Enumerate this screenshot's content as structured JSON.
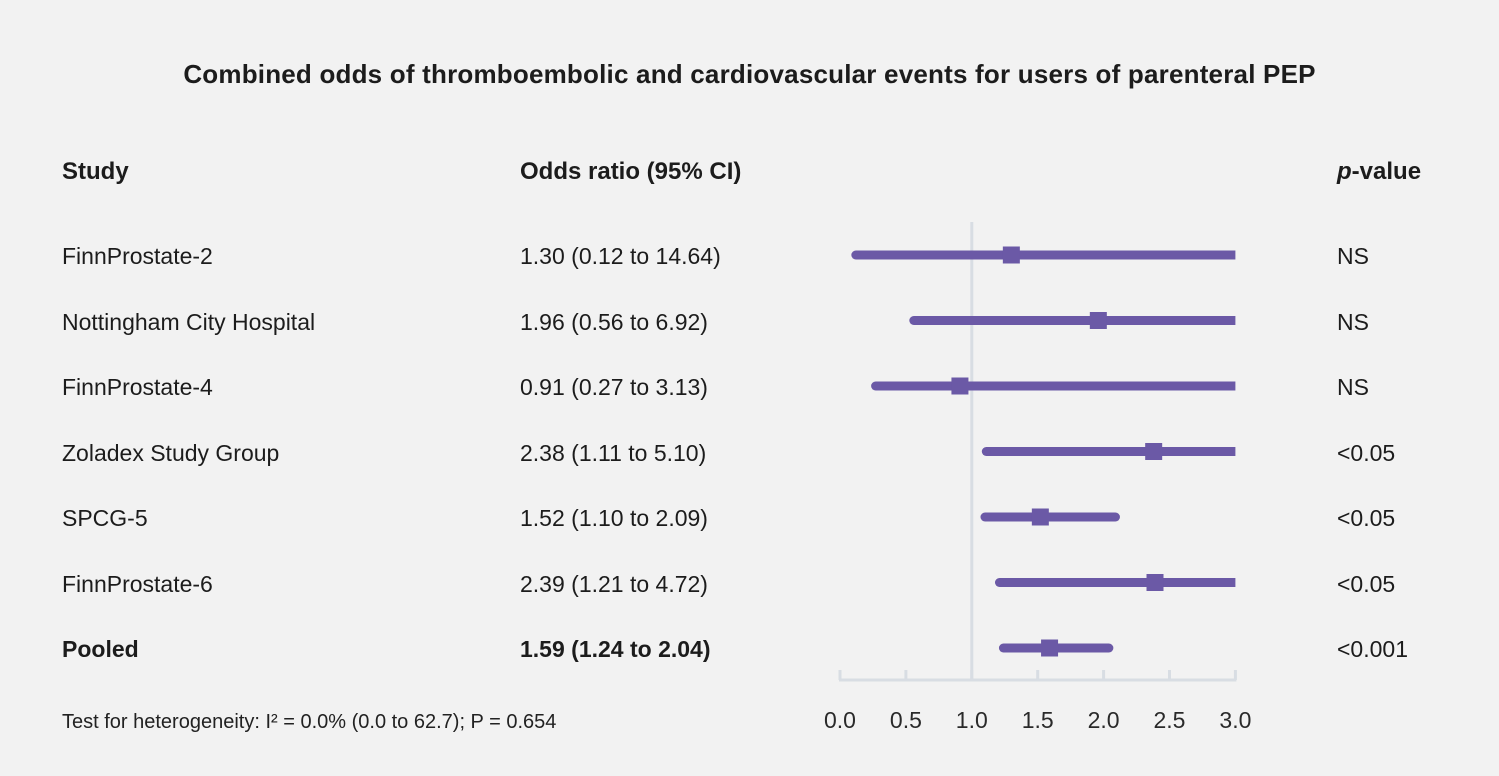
{
  "title": "Combined odds of thromboembolic and cardiovascular events for users of parenteral PEP",
  "columns": {
    "study": "Study",
    "odds_ratio": "Odds ratio (95% CI)",
    "pvalue_italic": "p",
    "pvalue_rest": "-value"
  },
  "footnote": "Test for heterogeneity: I² = 0.0% (0.0 to 62.7); P = 0.654",
  "colors": {
    "background": "#f2f2f2",
    "marker_purple": "#6b59a6",
    "axis_gray": "#d8dde3",
    "text": "#1c1c1c"
  },
  "chart_data": {
    "type": "forest",
    "title": "Combined odds of thromboembolic and cardiovascular events for users of parenteral PEP",
    "xlabel": "",
    "x_ticks": [
      "0.0",
      "0.5",
      "1.0",
      "1.5",
      "2.0",
      "2.5",
      "3.0"
    ],
    "x_range": [
      0.0,
      3.0
    ],
    "reference_line": 1.0,
    "legend": "none",
    "rows": [
      {
        "study": "FinnProstate-2",
        "or": 1.3,
        "ci_low": 0.12,
        "ci_high": 14.64,
        "or_label": "1.30 (0.12 to 14.64)",
        "p_value": "NS",
        "bold": false
      },
      {
        "study": "Nottingham City Hospital",
        "or": 1.96,
        "ci_low": 0.56,
        "ci_high": 6.92,
        "or_label": "1.96 (0.56 to 6.92)",
        "p_value": "NS",
        "bold": false
      },
      {
        "study": "FinnProstate-4",
        "or": 0.91,
        "ci_low": 0.27,
        "ci_high": 3.13,
        "or_label": "0.91 (0.27 to 3.13)",
        "p_value": "NS",
        "bold": false
      },
      {
        "study": "Zoladex Study Group",
        "or": 2.38,
        "ci_low": 1.11,
        "ci_high": 5.1,
        "or_label": "2.38 (1.11 to 5.10)",
        "p_value": "<0.05",
        "bold": false
      },
      {
        "study": "SPCG-5",
        "or": 1.52,
        "ci_low": 1.1,
        "ci_high": 2.09,
        "or_label": "1.52 (1.10 to 2.09)",
        "p_value": "<0.05",
        "bold": false
      },
      {
        "study": "FinnProstate-6",
        "or": 2.39,
        "ci_low": 1.21,
        "ci_high": 4.72,
        "or_label": "2.39 (1.21 to 4.72)",
        "p_value": "<0.05",
        "bold": false
      },
      {
        "study": "Pooled",
        "or": 1.59,
        "ci_low": 1.24,
        "ci_high": 2.04,
        "or_label": "1.59 (1.24 to 2.04)",
        "p_value": "<0.001",
        "bold": true
      }
    ],
    "heterogeneity_note": "Test for heterogeneity: I² = 0.0% (0.0 to 62.7); P = 0.654"
  }
}
